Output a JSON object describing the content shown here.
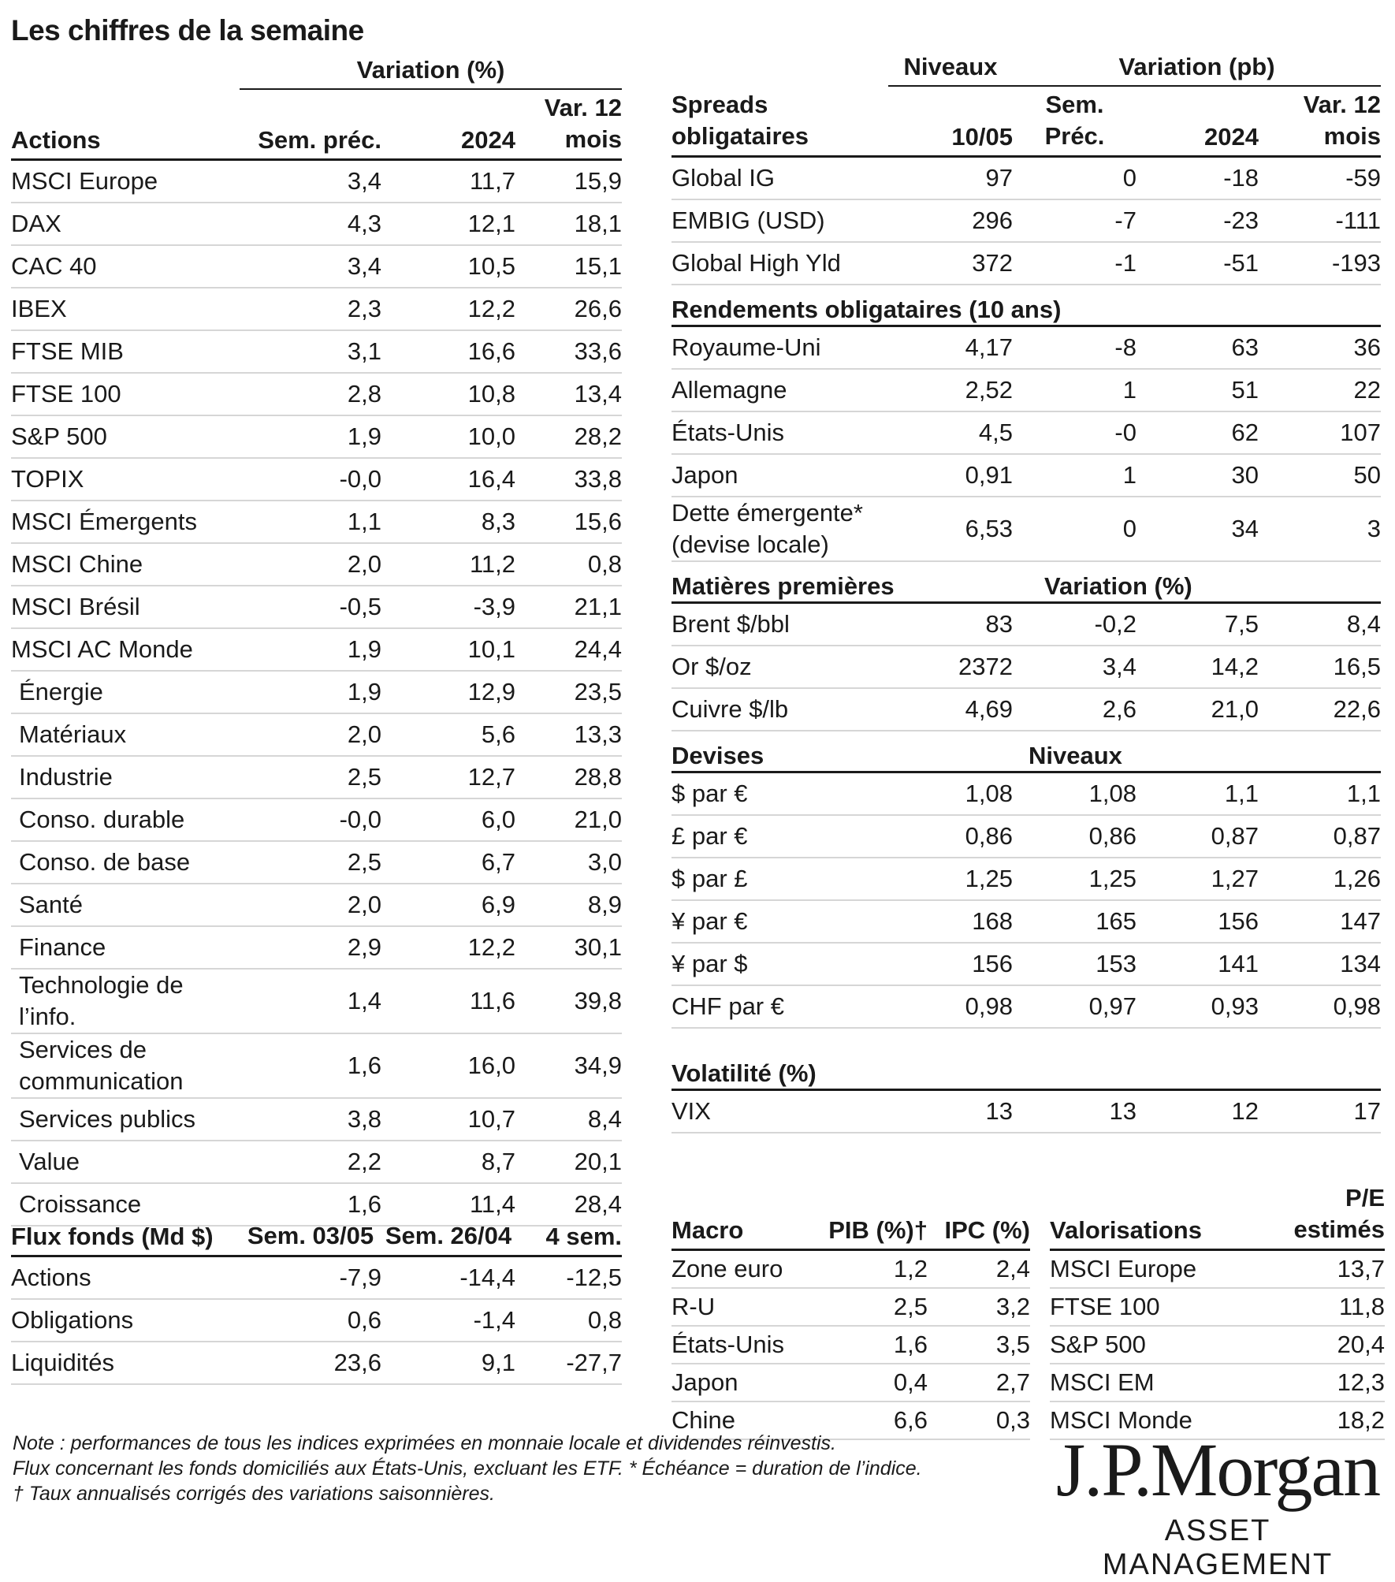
{
  "title": "Les chiffres de la semaine",
  "actions": {
    "super_header": "Variation (%)",
    "header": [
      "Actions",
      "Sem. préc.",
      "2024",
      "Var. 12 mois"
    ],
    "rows": [
      [
        "MSCI Europe",
        "3,4",
        "11,7",
        "15,9"
      ],
      [
        "DAX",
        "4,3",
        "12,1",
        "18,1"
      ],
      [
        "CAC 40",
        "3,4",
        "10,5",
        "15,1"
      ],
      [
        "IBEX",
        "2,3",
        "12,2",
        "26,6"
      ],
      [
        "FTSE MIB",
        "3,1",
        "16,6",
        "33,6"
      ],
      [
        "FTSE 100",
        "2,8",
        "10,8",
        "13,4"
      ],
      [
        "S&P 500",
        "1,9",
        "10,0",
        "28,2"
      ],
      [
        "TOPIX",
        "-0,0",
        "16,4",
        "33,8"
      ],
      [
        "MSCI Émergents",
        "1,1",
        "8,3",
        "15,6"
      ],
      [
        "MSCI Chine",
        "2,0",
        "11,2",
        "0,8"
      ],
      [
        "MSCI Brésil",
        "-0,5",
        "-3,9",
        "21,1"
      ],
      [
        "MSCI AC Monde",
        "1,9",
        "10,1",
        "24,4"
      ],
      [
        "Énergie",
        "1,9",
        "12,9",
        "23,5"
      ],
      [
        "Matériaux",
        "2,0",
        "5,6",
        "13,3"
      ],
      [
        "Industrie",
        "2,5",
        "12,7",
        "28,8"
      ],
      [
        "Conso. durable",
        "-0,0",
        "6,0",
        "21,0"
      ],
      [
        "Conso. de base",
        "2,5",
        "6,7",
        "3,0"
      ],
      [
        "Santé",
        "2,0",
        "6,9",
        "8,9"
      ],
      [
        "Finance",
        "2,9",
        "12,2",
        "30,1"
      ],
      [
        "Technologie de l’info.",
        "1,4",
        "11,6",
        "39,8"
      ],
      [
        "Services de communication",
        "1,6",
        "16,0",
        "34,9"
      ],
      [
        "Services publics",
        "3,8",
        "10,7",
        "8,4"
      ],
      [
        "Value",
        "2,2",
        "8,7",
        "20,1"
      ],
      [
        "Croissance",
        "1,6",
        "11,4",
        "28,4"
      ]
    ]
  },
  "flux": {
    "header": [
      "Flux fonds (Md $)",
      "Sem. 03/05",
      "Sem. 26/04",
      "4 sem."
    ],
    "rows": [
      [
        "Actions",
        "-7,9",
        "-14,4",
        "-12,5"
      ],
      [
        "Obligations",
        "0,6",
        "-1,4",
        "0,8"
      ],
      [
        "Liquidités",
        "23,6",
        "9,1",
        "-27,7"
      ]
    ]
  },
  "spreads": {
    "super_niveaux": "Niveaux",
    "super_variation": "Variation (pb)",
    "header": [
      "Spreads obligataires",
      "10/05",
      "Sem. Préc.",
      "2024",
      "Var. 12 mois"
    ],
    "rows": [
      [
        "Global IG",
        "97",
        "0",
        "-18",
        "-59"
      ],
      [
        "EMBIG (USD)",
        "296",
        "-7",
        "-23",
        "-111"
      ],
      [
        "Global High Yld",
        "372",
        "-1",
        "-51",
        "-193"
      ]
    ]
  },
  "rendements": {
    "header": "Rendements obligataires (10 ans)",
    "rows": [
      [
        "Royaume-Uni",
        "4,17",
        "-8",
        "63",
        "36"
      ],
      [
        "Allemagne",
        "2,52",
        "1",
        "51",
        "22"
      ],
      [
        "États-Unis",
        "4,5",
        "-0",
        "62",
        "107"
      ],
      [
        "Japon",
        "0,91",
        "1",
        "30",
        "50"
      ],
      [
        "Dette émergente* (devise locale)",
        "6,53",
        "0",
        "34",
        "3"
      ]
    ]
  },
  "matieres": {
    "header": "Matières premières",
    "sub": "Variation (%)",
    "rows": [
      [
        "Brent $/bbl",
        "83",
        "-0,2",
        "7,5",
        "8,4"
      ],
      [
        "Or $/oz",
        "2372",
        "3,4",
        "14,2",
        "16,5"
      ],
      [
        "Cuivre $/lb",
        "4,69",
        "2,6",
        "21,0",
        "22,6"
      ]
    ]
  },
  "devises": {
    "header": "Devises",
    "sub": "Niveaux",
    "rows": [
      [
        "$ par €",
        "1,08",
        "1,08",
        "1,1",
        "1,1"
      ],
      [
        "£ par €",
        "0,86",
        "0,86",
        "0,87",
        "0,87"
      ],
      [
        "$ par £",
        "1,25",
        "1,25",
        "1,27",
        "1,26"
      ],
      [
        "¥ par €",
        "168",
        "165",
        "156",
        "147"
      ],
      [
        "¥ par $",
        "156",
        "153",
        "141",
        "134"
      ],
      [
        "CHF par €",
        "0,98",
        "0,97",
        "0,93",
        "0,98"
      ]
    ]
  },
  "volatilite": {
    "header": "Volatilité (%)",
    "rows": [
      [
        "VIX",
        "13",
        "13",
        "12",
        "17"
      ]
    ]
  },
  "macro": {
    "header": [
      "Macro",
      "PIB (%)†",
      "IPC (%)"
    ],
    "rows": [
      [
        "Zone euro",
        "1,2",
        "2,4"
      ],
      [
        "R-U",
        "2,5",
        "3,2"
      ],
      [
        "États-Unis",
        "1,6",
        "3,5"
      ],
      [
        "Japon",
        "0,4",
        "2,7"
      ],
      [
        "Chine",
        "6,6",
        "0,3"
      ]
    ]
  },
  "valorisations": {
    "header": [
      "Valorisations",
      "P/E estimés"
    ],
    "rows": [
      [
        "MSCI Europe",
        "13,7"
      ],
      [
        "FTSE 100",
        "11,8"
      ],
      [
        "S&P 500",
        "20,4"
      ],
      [
        "MSCI EM",
        "12,3"
      ],
      [
        "MSCI Monde",
        "18,2"
      ]
    ]
  },
  "notes": [
    "Note : performances de tous les indices exprimées en monnaie locale et dividendes réinvestis.",
    "Flux concernant les fonds domiciliés aux États-Unis, excluant les ETF. * Échéance = duration de l’indice.",
    "† Taux annualisés corrigés des variations saisonnières."
  ],
  "logo": {
    "main": "J.P.Morgan",
    "sub": "ASSET MANAGEMENT"
  }
}
